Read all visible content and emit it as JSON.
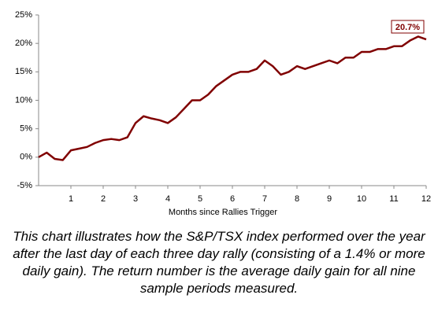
{
  "chart_data": {
    "type": "line",
    "x_label": "Months since Rallies Trigger",
    "x": [
      0,
      0.25,
      0.5,
      0.75,
      1,
      1.25,
      1.5,
      1.75,
      2,
      2.25,
      2.5,
      2.75,
      3,
      3.25,
      3.5,
      3.75,
      4,
      4.25,
      4.5,
      4.75,
      5,
      5.25,
      5.5,
      5.75,
      6,
      6.25,
      6.5,
      6.75,
      7,
      7.25,
      7.5,
      7.75,
      8,
      8.25,
      8.5,
      8.75,
      9,
      9.25,
      9.5,
      9.75,
      10,
      10.25,
      10.5,
      10.75,
      11,
      11.25,
      11.5,
      11.75,
      12
    ],
    "series": [
      {
        "color": "#800000",
        "values": [
          0,
          0.8,
          -0.3,
          -0.5,
          1.2,
          1.5,
          1.8,
          2.5,
          3,
          3.2,
          3,
          3.5,
          6,
          7.2,
          6.8,
          6.5,
          6,
          7,
          8.5,
          10,
          10,
          11,
          12.5,
          13.5,
          14.5,
          15,
          15,
          15.5,
          17,
          16,
          14.5,
          15,
          16,
          15.5,
          16,
          16.5,
          17,
          16.5,
          17.5,
          17.5,
          18.5,
          18.5,
          19,
          19,
          19.5,
          19.5,
          20.5,
          21.2,
          20.7
        ]
      }
    ],
    "annotations": [
      {
        "x": 12,
        "value": 20.7,
        "label": "20.7%"
      }
    ],
    "xlim": [
      0,
      12
    ],
    "xticks": [
      1,
      2,
      3,
      4,
      5,
      6,
      7,
      8,
      9,
      10,
      11,
      12
    ],
    "ylim": [
      -5,
      25
    ],
    "yticks": [
      {
        "value": -5,
        "label": "-5%"
      },
      {
        "value": 0,
        "label": "0%"
      },
      {
        "value": 5,
        "label": "5%"
      },
      {
        "value": 10,
        "label": "10%"
      },
      {
        "value": 15,
        "label": "15%"
      },
      {
        "value": 20,
        "label": "20%"
      },
      {
        "value": 25,
        "label": "25%"
      }
    ],
    "grid": false,
    "caption": "This chart illustrates how the S&P/TSX index performed over the year after the last day of each three day rally (consisting of a 1.4% or more daily gain). The return number is the average daily gain for all nine sample periods measured."
  }
}
